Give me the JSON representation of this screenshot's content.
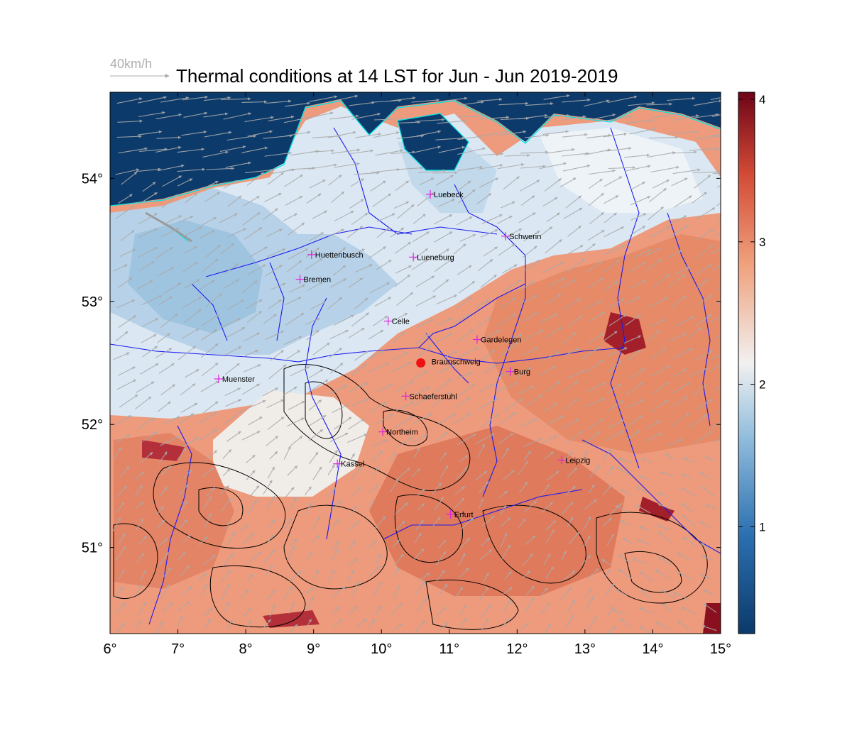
{
  "title": "Thermal conditions at 14 LST for Jun - Jun  2019-2019",
  "wind_scale": {
    "label": "40km/h",
    "value_kmh": 40
  },
  "map": {
    "lon_range": [
      6,
      15
    ],
    "lat_range": [
      50.3,
      54.7
    ],
    "lon_ticks": [
      "6°",
      "7°",
      "8°",
      "9°",
      "10°",
      "11°",
      "12°",
      "13°",
      "14°",
      "15°"
    ],
    "lat_ticks": [
      "54°",
      "53°",
      "52°",
      "51°"
    ],
    "lat_tick_values": [
      54,
      53,
      52,
      51
    ]
  },
  "colorbar": {
    "range": [
      0.25,
      4.05
    ],
    "ticks": [
      "1",
      "2",
      "3",
      "4"
    ],
    "tick_values": [
      1,
      2,
      3,
      4
    ],
    "colors": [
      "#0b3a6b",
      "#2b6fb0",
      "#8fbcdc",
      "#f1f1f1",
      "#f0a27e",
      "#d24a35",
      "#6e0417"
    ]
  },
  "cities": [
    {
      "name": "Luebeck",
      "lon": 10.72,
      "lat": 53.87
    },
    {
      "name": "Schwerin",
      "lon": 11.83,
      "lat": 53.53
    },
    {
      "name": "Huettenbusch",
      "lon": 8.97,
      "lat": 53.38
    },
    {
      "name": "Lueneburg",
      "lon": 10.47,
      "lat": 53.36
    },
    {
      "name": "Bremen",
      "lon": 8.8,
      "lat": 53.18
    },
    {
      "name": "Celle",
      "lon": 10.1,
      "lat": 52.84
    },
    {
      "name": "Gardelegen",
      "lon": 11.41,
      "lat": 52.69
    },
    {
      "name": "Burg",
      "lon": 11.9,
      "lat": 52.43
    },
    {
      "name": "Muenster",
      "lon": 7.6,
      "lat": 52.37
    },
    {
      "name": "Schaeferstuhl",
      "lon": 10.36,
      "lat": 52.23
    },
    {
      "name": "Northeim",
      "lon": 10.02,
      "lat": 51.94
    },
    {
      "name": "Kassel",
      "lon": 9.35,
      "lat": 51.68
    },
    {
      "name": "Leipzig",
      "lon": 12.66,
      "lat": 51.71
    },
    {
      "name": "Erfurt",
      "lon": 11.02,
      "lat": 51.27
    }
  ],
  "station": {
    "name": "Braunschweig",
    "lon": 10.58,
    "lat": 52.5,
    "color": "#ee1111"
  },
  "colors": {
    "sea": "#0b3a6b",
    "coast": "#00e5e5",
    "rivers": "#1a1aee",
    "contours": "#000000",
    "wind": "#aaaaaa",
    "city_marker": "#e020e0"
  }
}
